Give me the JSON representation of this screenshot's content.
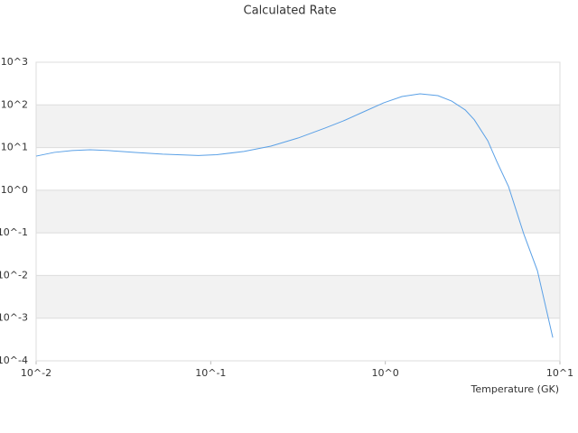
{
  "chart_data": {
    "type": "line",
    "title": "Calculated Rate",
    "x_label": "Temperature (GK)",
    "xscale": "log",
    "yscale": "log",
    "grid": true,
    "bands": true,
    "xlim": [
      0.01,
      10
    ],
    "xticks": [
      {
        "value": 0.01,
        "label": "10^-2"
      },
      {
        "value": 0.1,
        "label": "10^-1"
      },
      {
        "value": 1,
        "label": "10^0"
      },
      {
        "value": 10,
        "label": "10^1"
      }
    ],
    "ylim": [
      0.0001,
      1000
    ],
    "yticks": [
      {
        "value": 0.0001,
        "label": "10^-4"
      },
      {
        "value": 0.001,
        "label": "10^-3"
      },
      {
        "value": 0.01,
        "label": "10^-2"
      },
      {
        "value": 0.1,
        "label": "10^-1"
      },
      {
        "value": 1,
        "label": "10^0"
      },
      {
        "value": 10,
        "label": "10^1"
      },
      {
        "value": 100,
        "label": "10^2"
      },
      {
        "value": 1000,
        "label": "10^3"
      }
    ],
    "series": [
      {
        "color": "#5aa0e6",
        "x": [
          0.01,
          0.0127,
          0.0161,
          0.0204,
          0.026,
          0.037,
          0.053,
          0.085,
          0.108,
          0.155,
          0.221,
          0.316,
          0.452,
          0.574,
          0.728,
          0.98,
          1.245,
          1.58,
          2.0,
          2.4,
          2.87,
          3.23,
          3.86,
          4.35,
          5.08,
          6.22,
          7.43,
          9.1
        ],
        "values": [
          6.3,
          7.7,
          8.5,
          8.9,
          8.5,
          7.7,
          7.0,
          6.5,
          6.8,
          8.1,
          10.8,
          16.7,
          28.7,
          42,
          65,
          112,
          157,
          182,
          165,
          123,
          76,
          45,
          14.5,
          4.7,
          1.21,
          0.092,
          0.013,
          0.00035
        ]
      }
    ]
  }
}
